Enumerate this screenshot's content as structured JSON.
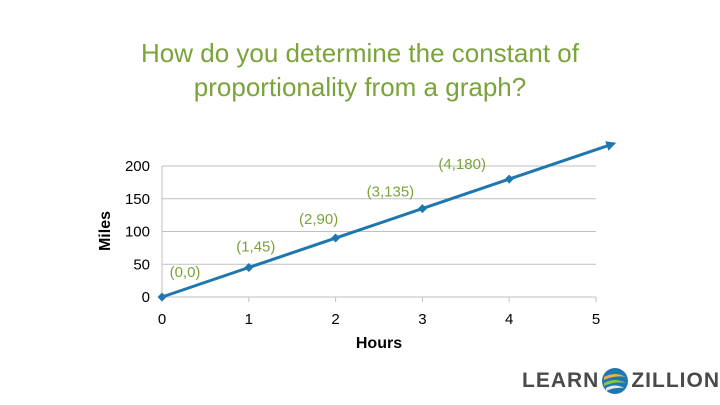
{
  "title": "How do you determine the constant of proportionality from a graph?",
  "logo": {
    "left_text": "LEARN",
    "right_text": "ZILLION"
  },
  "colors": {
    "title": "#7aa33a",
    "series": "#1f77b0",
    "point_labels": "#7aa33a",
    "grid": "#bfbfbf"
  },
  "chart_data": {
    "type": "line",
    "xlabel": "Hours",
    "ylabel": "Miles",
    "xlim": [
      0,
      5
    ],
    "ylim": [
      0,
      200
    ],
    "x_ticks": [
      0,
      1,
      2,
      3,
      4,
      5
    ],
    "y_ticks": [
      0,
      50,
      100,
      150,
      200
    ],
    "grid": "horizontal",
    "series": [
      {
        "x": [
          0,
          1,
          2,
          3,
          4
        ],
        "y": [
          0,
          45,
          90,
          135,
          180
        ],
        "marker": "diamond",
        "arrow": true
      }
    ],
    "point_labels": [
      "(0,0)",
      "(1,45)",
      "(2,90)",
      "(3,135)",
      "(4,180)"
    ]
  }
}
